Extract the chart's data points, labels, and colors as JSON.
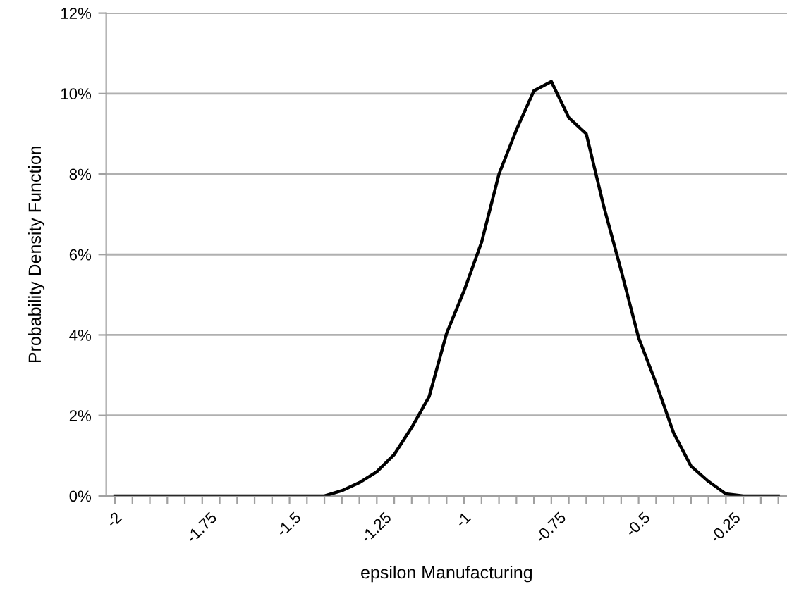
{
  "chart_data": {
    "type": "line",
    "xlabel": "epsilon Manufacturing",
    "ylabel": "Probability Density Function",
    "categories": [
      "-2",
      null,
      null,
      null,
      null,
      "-1.75",
      null,
      null,
      null,
      null,
      "-1.5",
      null,
      null,
      null,
      null,
      "-1.25",
      null,
      null,
      null,
      null,
      "-1",
      null,
      null,
      null,
      null,
      "-0.75",
      null,
      null,
      null,
      null,
      "-0.5",
      null,
      null,
      null,
      null,
      "-0.25",
      null,
      null,
      null
    ],
    "series": [
      {
        "color": "#000000",
        "values": [
          0,
          0,
          0,
          0,
          0,
          0,
          0,
          0,
          0,
          0,
          0,
          0,
          0,
          0.13,
          0.33,
          0.6,
          1.03,
          1.7,
          2.47,
          4.04,
          5.1,
          6.3,
          8.0,
          9.1,
          10.07,
          10.3,
          9.4,
          9.0,
          7.2,
          5.6,
          3.93,
          2.8,
          1.57,
          0.74,
          0.36,
          0.05,
          0,
          0,
          0
        ]
      }
    ],
    "ylim": [
      0,
      12
    ],
    "yticks": [
      {
        "value": 0,
        "label": "0%"
      },
      {
        "value": 2,
        "label": "2%"
      },
      {
        "value": 4,
        "label": "4%"
      },
      {
        "value": 6,
        "label": "6%"
      },
      {
        "value": 8,
        "label": "8%"
      },
      {
        "value": 10,
        "label": "10%"
      },
      {
        "value": 12,
        "label": "12%"
      }
    ],
    "grid": "y",
    "marker": "none",
    "line_style": "solid"
  }
}
